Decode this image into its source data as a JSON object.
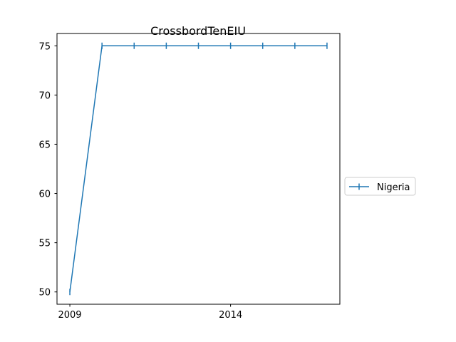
{
  "chart_data": {
    "type": "line",
    "title": "CrossbordTenEIU",
    "xlabel": "",
    "ylabel": "",
    "x": [
      2009,
      2010,
      2011,
      2012,
      2013,
      2014,
      2015,
      2016,
      2017
    ],
    "series": [
      {
        "name": "Nigeria",
        "color": "#1f77b4",
        "marker": "vertical-tick",
        "values": [
          50,
          75,
          75,
          75,
          75,
          75,
          75,
          75,
          75
        ]
      }
    ],
    "xlim": [
      2008.6,
      2017.4
    ],
    "ylim": [
      48.75,
      76.25
    ],
    "xticks": [
      2009,
      2014
    ],
    "yticks": [
      50,
      55,
      60,
      65,
      70,
      75
    ],
    "grid": false,
    "legend_position": "right-outside"
  }
}
